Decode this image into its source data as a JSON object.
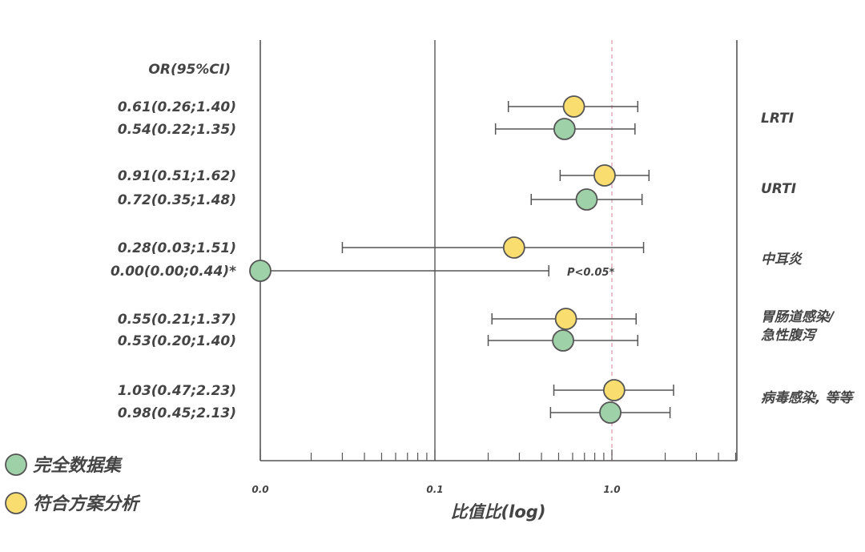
{
  "chart_data": {
    "type": "forest",
    "xscale": "log",
    "xlabel": "比值比(log)",
    "xticks": [
      "0.0",
      "0.1",
      "1.0"
    ],
    "header": "OR(95%CI)",
    "reference_line": 1.0,
    "annotation": "P<0.05*",
    "legend": [
      {
        "name": "完全数据集",
        "color": "#9ed1a8"
      },
      {
        "name": "符合方案分析",
        "color": "#f9dd6e"
      }
    ],
    "groups": [
      {
        "label": [
          "LRTI"
        ],
        "rows": [
          {
            "series": "符合方案分析",
            "text": "0.61(0.26;1.40)",
            "or": 0.61,
            "lo": 0.26,
            "hi": 1.4
          },
          {
            "series": "完全数据集",
            "text": "0.54(0.22;1.35)",
            "or": 0.54,
            "lo": 0.22,
            "hi": 1.35
          }
        ]
      },
      {
        "label": [
          "URTI"
        ],
        "rows": [
          {
            "series": "符合方案分析",
            "text": "0.91(0.51;1.62)",
            "or": 0.91,
            "lo": 0.51,
            "hi": 1.62
          },
          {
            "series": "完全数据集",
            "text": "0.72(0.35;1.48)",
            "or": 0.72,
            "lo": 0.35,
            "hi": 1.48
          }
        ]
      },
      {
        "label": [
          "中耳炎"
        ],
        "rows": [
          {
            "series": "符合方案分析",
            "text": "0.28(0.03;1.51)",
            "or": 0.28,
            "lo": 0.03,
            "hi": 1.51
          },
          {
            "series": "完全数据集",
            "text": "0.00(0.00;0.44)*",
            "or": 0.0,
            "lo": 0.0,
            "hi": 0.44
          }
        ]
      },
      {
        "label": [
          "胃肠道感染/",
          "急性腹泻"
        ],
        "rows": [
          {
            "series": "符合方案分析",
            "text": "0.55(0.21;1.37)",
            "or": 0.55,
            "lo": 0.21,
            "hi": 1.37
          },
          {
            "series": "完全数据集",
            "text": "0.53(0.20;1.40)",
            "or": 0.53,
            "lo": 0.2,
            "hi": 1.4
          }
        ]
      },
      {
        "label": [
          "病毒感染, 等等"
        ],
        "rows": [
          {
            "series": "符合方案分析",
            "text": "1.03(0.47;2.23)",
            "or": 1.03,
            "lo": 0.47,
            "hi": 2.23
          },
          {
            "series": "完全数据集",
            "text": "0.98(0.45;2.13)",
            "or": 0.98,
            "lo": 0.45,
            "hi": 2.13
          }
        ]
      }
    ]
  }
}
